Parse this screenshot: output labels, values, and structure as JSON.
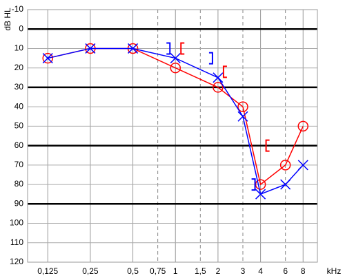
{
  "chart_data": {
    "type": "audiogram",
    "y_label": "dB HL",
    "x_label": "kHz",
    "log_x": true,
    "xlim": [
      0.09,
      10.1
    ],
    "xticks": [
      {
        "value": 0.125,
        "label": "0,125"
      },
      {
        "value": 0.25,
        "label": "0,25"
      },
      {
        "value": 0.5,
        "label": "0,5"
      },
      {
        "value": 0.75,
        "label": "0,75"
      },
      1,
      {
        "value": 1.5,
        "label": "1,5"
      },
      2,
      3,
      4,
      6,
      8
    ],
    "xticks_dashed": [
      0.75,
      1.5,
      3,
      6
    ],
    "ylim": [
      -10,
      120
    ],
    "y_inverted": true,
    "yticks": [
      -10,
      0,
      10,
      20,
      30,
      40,
      50,
      60,
      70,
      80,
      90,
      100,
      110,
      120
    ],
    "yticks_major": [
      0,
      30,
      60,
      90
    ],
    "grid": true,
    "x": [
      0.125,
      0.25,
      0.5,
      1,
      2,
      3,
      4,
      6,
      8
    ],
    "series": [
      {
        "color": "#ff0000",
        "marker": "circle",
        "values": [
          15,
          10,
          10,
          20,
          30,
          40,
          80,
          70,
          50
        ]
      },
      {
        "color": "#0000ff",
        "marker": "cross",
        "values": [
          15,
          10,
          10,
          15,
          25,
          45,
          85,
          80,
          70
        ]
      }
    ],
    "bone_conduction": [
      {
        "color": "#0000ff",
        "marker": "right-bracket",
        "x": [
          1,
          2,
          4
        ],
        "values": [
          10,
          15,
          80
        ]
      },
      {
        "color": "#ff0000",
        "marker": "left-bracket",
        "x": [
          1,
          2,
          4
        ],
        "values": [
          10,
          22,
          60
        ]
      }
    ]
  }
}
